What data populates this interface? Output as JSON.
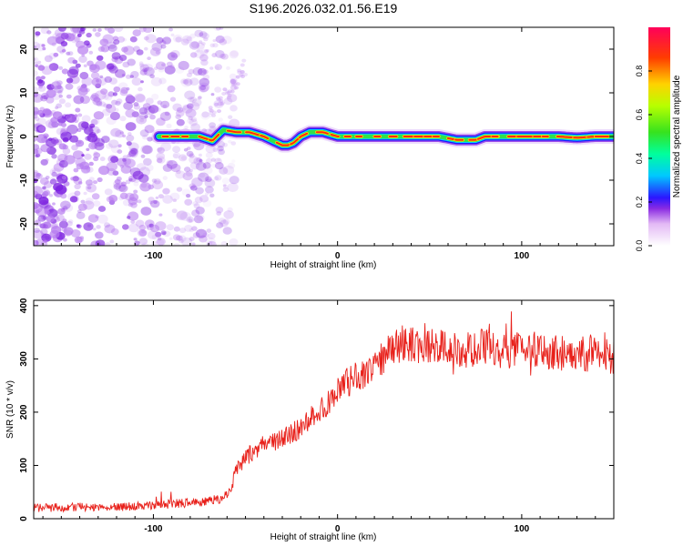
{
  "title": "S196.2026.032.01.56.E19",
  "colors": {
    "spectrogram_noise": "#8a2be2",
    "snr_line": "#e8201a",
    "axis": "#000000"
  },
  "chart_data": [
    {
      "type": "heatmap",
      "name": "spectrogram",
      "xlabel": "Height of straight line (km)",
      "ylabel": "Frequency (Hz)",
      "xlim": [
        -165,
        150
      ],
      "ylim": [
        -25,
        25
      ],
      "x_ticks": [
        -100,
        0,
        100
      ],
      "x_tick_labels": [
        "-100",
        "0",
        "100"
      ],
      "y_ticks": [
        -20,
        -10,
        0,
        10,
        20
      ],
      "y_tick_labels": [
        "-20",
        "-10",
        "0",
        "10",
        "20"
      ],
      "noise_region_x": [
        -165,
        -62
      ],
      "ridge_start_x": -97,
      "ridge": {
        "x": [
          -97,
          -85,
          -75,
          -68,
          -62,
          -55,
          -48,
          -40,
          -35,
          -30,
          -27,
          -24,
          -20,
          -15,
          -8,
          0,
          10,
          25,
          40,
          55,
          65,
          75,
          80,
          90,
          100,
          110,
          120,
          130,
          140,
          150
        ],
        "y": [
          0,
          0,
          0,
          -1,
          1.5,
          1,
          1,
          0,
          -1,
          -2,
          -2,
          -1.5,
          0,
          1,
          1,
          0,
          0,
          0,
          0,
          0,
          -0.8,
          -0.8,
          0,
          0,
          0,
          0,
          0,
          -0.3,
          0,
          0
        ]
      },
      "colorbar": {
        "label": "Normalized spectral amplitude",
        "range": [
          0,
          1
        ],
        "ticks": [
          0.0,
          0.2,
          0.4,
          0.6,
          0.8
        ],
        "tick_labels": [
          "0.0",
          "0.2",
          "0.4",
          "0.6",
          "0.8"
        ]
      }
    },
    {
      "type": "line",
      "name": "snr",
      "xlabel": "Height of straight line (km)",
      "ylabel": "SNR (10 * v/v)",
      "xlim": [
        -165,
        150
      ],
      "ylim": [
        0,
        410
      ],
      "x_ticks": [
        -100,
        0,
        100
      ],
      "x_tick_labels": [
        "-100",
        "0",
        "100"
      ],
      "y_ticks": [
        0,
        100,
        200,
        300,
        400
      ],
      "y_tick_labels": [
        "0",
        "100",
        "200",
        "300",
        "400"
      ],
      "series": [
        {
          "name": "SNR",
          "x": [
            -165,
            -140,
            -120,
            -100,
            -90,
            -80,
            -70,
            -62,
            -58,
            -55,
            -50,
            -40,
            -30,
            -20,
            -10,
            0,
            10,
            20,
            25,
            30,
            35,
            40,
            50,
            60,
            70,
            80,
            90,
            100,
            110,
            120,
            130,
            140,
            150
          ],
          "y": [
            20,
            22,
            22,
            25,
            28,
            30,
            32,
            40,
            55,
            90,
            115,
            140,
            150,
            170,
            200,
            240,
            265,
            290,
            305,
            320,
            330,
            325,
            320,
            320,
            315,
            325,
            315,
            320,
            318,
            312,
            310,
            308,
            305
          ]
        }
      ]
    }
  ]
}
